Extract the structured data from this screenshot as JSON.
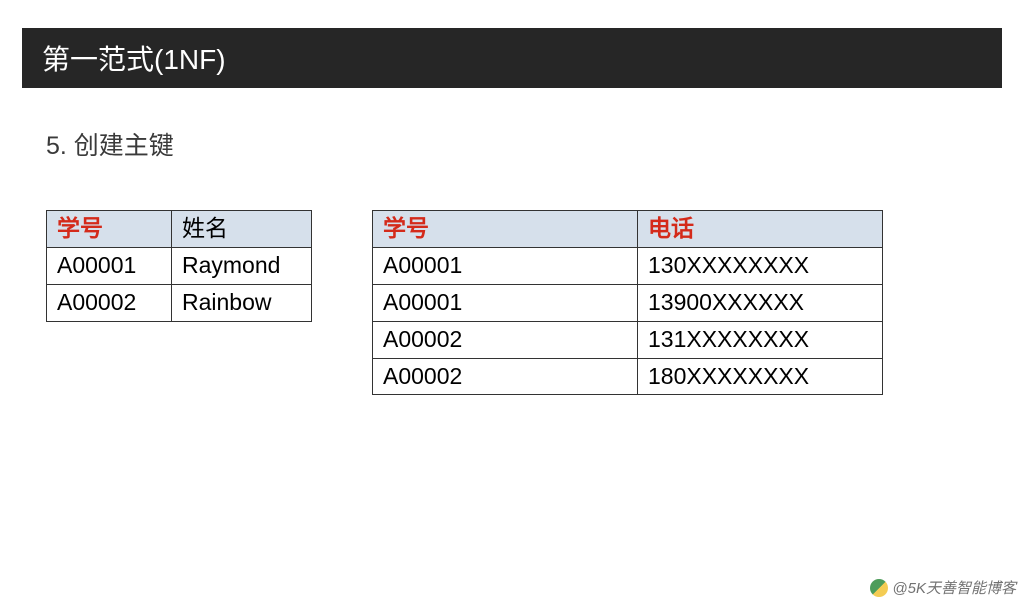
{
  "title": "第一范式(1NF)",
  "subtitle": "5. 创建主键",
  "colors": {
    "title_bg": "#262626",
    "title_fg": "#ffffff",
    "header_bg": "#d6e0eb",
    "border": "#333333",
    "pk_color": "#d42a1a",
    "text": "#000000"
  },
  "table1": {
    "columns": [
      {
        "label": "学号",
        "is_pk": true
      },
      {
        "label": "姓名",
        "is_pk": false
      }
    ],
    "rows": [
      [
        "A00001",
        "Raymond"
      ],
      [
        "A00002",
        "Rainbow"
      ]
    ]
  },
  "table2": {
    "columns": [
      {
        "label": "学号",
        "is_pk": true
      },
      {
        "label": "电话",
        "is_pk": true
      }
    ],
    "rows": [
      [
        "A00001",
        "130XXXXXXXX"
      ],
      [
        "A00001",
        "13900XXXXXX"
      ],
      [
        "A00002",
        "131XXXXXXXX"
      ],
      [
        "A00002",
        "180XXXXXXXX"
      ]
    ]
  },
  "watermark": "@5K天善智能博客"
}
